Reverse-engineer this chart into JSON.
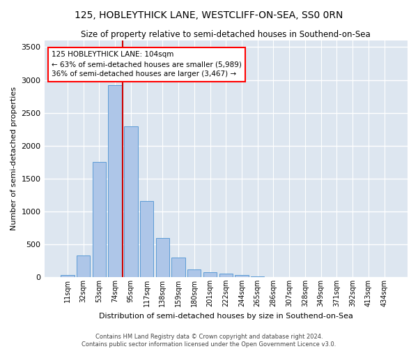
{
  "title": "125, HOBLEYTHICK LANE, WESTCLIFF-ON-SEA, SS0 0RN",
  "subtitle": "Size of property relative to semi-detached houses in Southend-on-Sea",
  "xlabel": "Distribution of semi-detached houses by size in Southend-on-Sea",
  "ylabel": "Number of semi-detached properties",
  "footer1": "Contains HM Land Registry data © Crown copyright and database right 2024.",
  "footer2": "Contains public sector information licensed under the Open Government Licence v3.0.",
  "categories": [
    "11sqm",
    "32sqm",
    "53sqm",
    "74sqm",
    "95sqm",
    "117sqm",
    "138sqm",
    "159sqm",
    "180sqm",
    "201sqm",
    "222sqm",
    "244sqm",
    "265sqm",
    "286sqm",
    "307sqm",
    "328sqm",
    "349sqm",
    "371sqm",
    "392sqm",
    "413sqm",
    "434sqm"
  ],
  "values": [
    30,
    330,
    1750,
    2920,
    2290,
    1160,
    590,
    300,
    120,
    75,
    55,
    30,
    5,
    0,
    0,
    0,
    0,
    0,
    0,
    0,
    0
  ],
  "bar_color": "#aec6e8",
  "bar_edge_color": "#5b9bd5",
  "background_color": "#dde6f0",
  "grid_color": "#ffffff",
  "fig_background": "#ffffff",
  "red_line_color": "#cc0000",
  "annotation_line1": "125 HOBLEYTHICK LANE: 104sqm",
  "annotation_line2": "← 63% of semi-detached houses are smaller (5,989)",
  "annotation_line3": "36% of semi-detached houses are larger (3,467) →",
  "red_line_x": 3.5,
  "ylim": [
    0,
    3600
  ],
  "yticks": [
    0,
    500,
    1000,
    1500,
    2000,
    2500,
    3000,
    3500
  ]
}
